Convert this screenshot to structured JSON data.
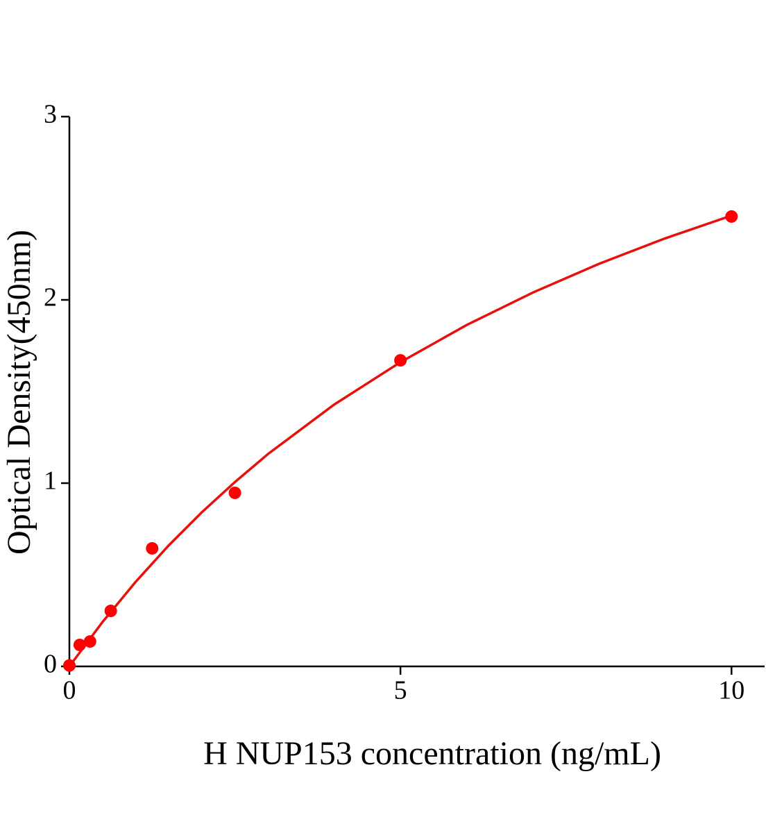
{
  "chart_data": {
    "type": "scatter",
    "x_label": "H NUP153 concentration (ng/mL)",
    "y_label": "Optical Density(450nm)",
    "xlim": [
      0,
      10.5
    ],
    "ylim": [
      0,
      3
    ],
    "xticks": [
      0,
      5,
      10
    ],
    "yticks": [
      0,
      1,
      2,
      3
    ],
    "series": [
      {
        "kind": "points",
        "color": "#ff0000",
        "x": [
          0,
          0.156,
          0.312,
          0.625,
          1.25,
          2.5,
          5,
          10
        ],
        "values": [
          0.005,
          0.117,
          0.136,
          0.303,
          0.644,
          0.947,
          1.67,
          2.455
        ]
      },
      {
        "kind": "line",
        "color": "#e8100c",
        "x": [
          0,
          0.5,
          1,
          1.5,
          2,
          2.5,
          3,
          4,
          5,
          6,
          7,
          8,
          9,
          10
        ],
        "values": [
          0,
          0.242,
          0.461,
          0.66,
          0.841,
          1.006,
          1.159,
          1.429,
          1.66,
          1.863,
          2.04,
          2.197,
          2.336,
          2.46
        ]
      }
    ]
  }
}
